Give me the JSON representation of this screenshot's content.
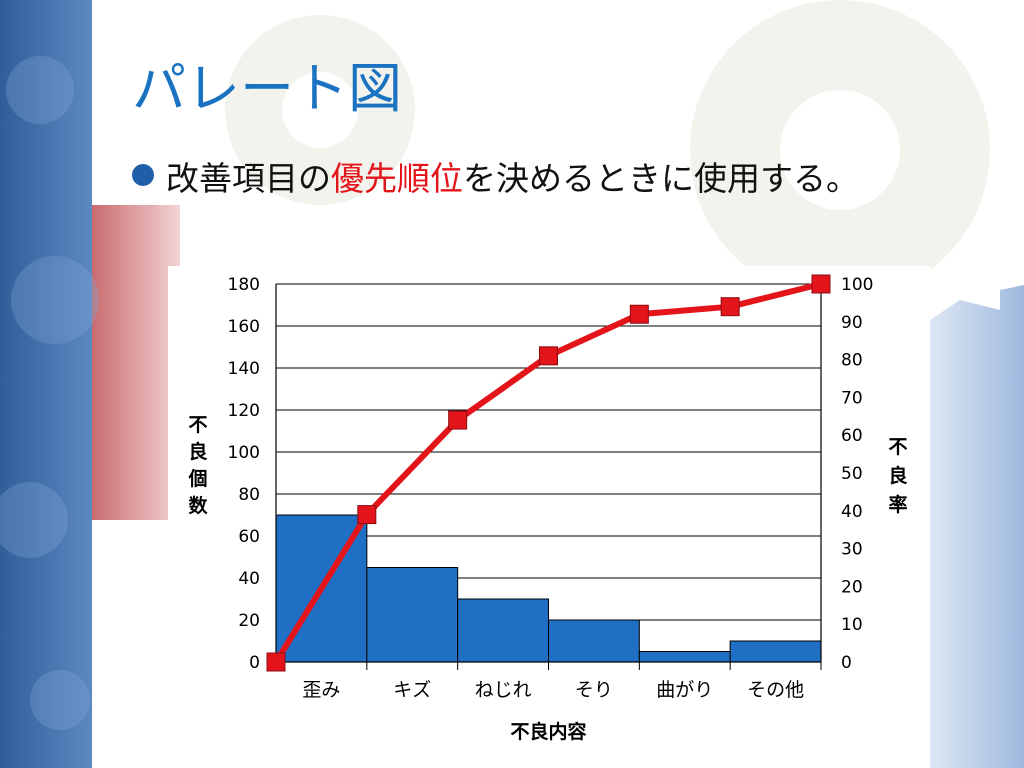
{
  "slide": {
    "title": "パレート図",
    "bullet_before": "改善項目の",
    "bullet_highlight": "優先順位",
    "bullet_after": "を決めるときに使用する。"
  },
  "colors": {
    "title": "#1a72c0",
    "highlight": "#e4141b",
    "bar": "#1f6fc5",
    "line": "#e4141b",
    "marker": "#e4141b"
  },
  "chart_data": {
    "type": "bar",
    "xlabel": "不良内容",
    "ylabel": "不良個数",
    "y2label": "不良率",
    "categories": [
      "歪み",
      "キズ",
      "ねじれ",
      "そり",
      "曲がり",
      "その他"
    ],
    "series": [
      {
        "type": "bar",
        "axis": "left",
        "values": [
          70,
          45,
          30,
          20,
          5,
          10
        ]
      },
      {
        "type": "line",
        "axis": "right",
        "x": [
          0,
          1,
          2,
          3,
          4,
          5,
          6
        ],
        "values": [
          0,
          39,
          64,
          81,
          92,
          94,
          100
        ]
      }
    ],
    "ylim": [
      0,
      180
    ],
    "y2lim": [
      0,
      100
    ],
    "yticks": [
      "0",
      "20",
      "40",
      "60",
      "80",
      "100",
      "120",
      "140",
      "160",
      "180"
    ],
    "y2ticks": [
      "0",
      "10",
      "20",
      "30",
      "40",
      "50",
      "60",
      "70",
      "80",
      "90",
      "100"
    ],
    "grid": true
  }
}
